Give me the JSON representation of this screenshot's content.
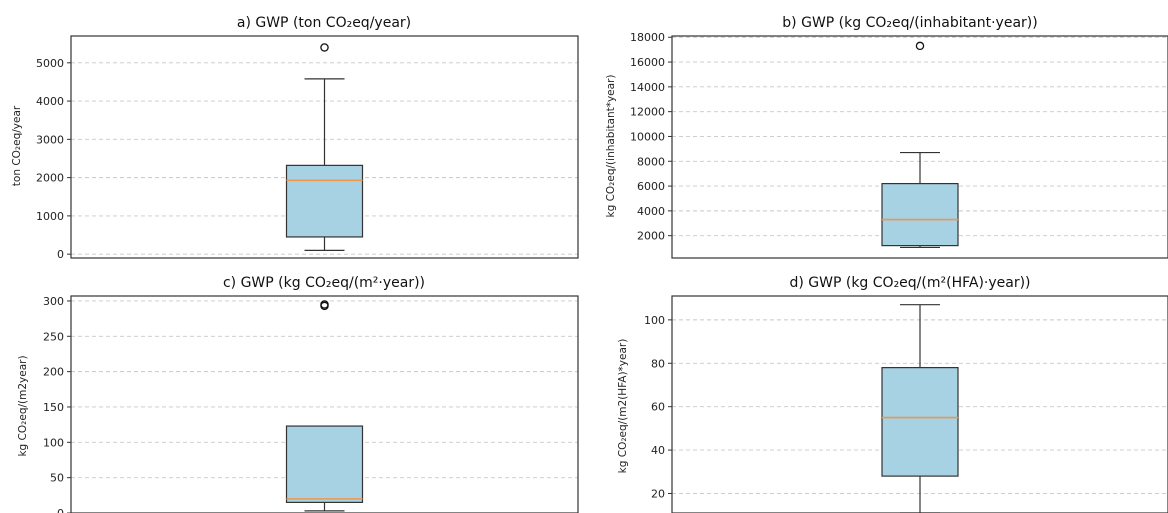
{
  "colors": {
    "box_fill": "#a6d2e4",
    "median": "#f0954d",
    "grid": "#c8c8c8",
    "frame": "#333333"
  },
  "chart_data": [
    {
      "type": "box",
      "title": "a) GWP (ton CO₂eq/year)",
      "ylabel": "ton CO₂eq/year",
      "ylim": [
        -100,
        5700
      ],
      "yticks": [
        0,
        1000,
        2000,
        3000,
        4000,
        5000
      ],
      "ytick_labels": [
        "0",
        "1000",
        "2000",
        "3000",
        "4000",
        "5000"
      ],
      "grid": "horizontal-dashed",
      "box": {
        "whisker_low": 100,
        "q1": 450,
        "median": 1930,
        "q3": 2320,
        "whisker_high": 4580,
        "outliers": [
          5400
        ]
      }
    },
    {
      "type": "box",
      "title": "b) GWP (kg CO₂eq/(inhabitant·year))",
      "ylabel": "kg CO₂eq/(inhabitant*year)",
      "ylim": [
        200,
        18100
      ],
      "yticks": [
        2000,
        4000,
        6000,
        8000,
        10000,
        12000,
        14000,
        16000,
        18000
      ],
      "ytick_labels": [
        "2000",
        "4000",
        "6000",
        "8000",
        "10000",
        "12000",
        "14000",
        "16000",
        "18000"
      ],
      "grid": "horizontal-dashed",
      "box": {
        "whisker_low": 1050,
        "q1": 1200,
        "median": 3300,
        "q3": 6200,
        "whisker_high": 8700,
        "outliers": [
          17300
        ]
      }
    },
    {
      "type": "box",
      "title": "c) GWP (kg CO₂eq/(m²·year))",
      "ylabel": "kg CO₂eq/(m2year)",
      "ylim": [
        0,
        307
      ],
      "yticks": [
        0,
        50,
        100,
        150,
        200,
        250,
        300
      ],
      "ytick_labels": [
        "0",
        "50",
        "100",
        "150",
        "200",
        "250",
        "300"
      ],
      "grid": "horizontal-dashed",
      "box": {
        "whisker_low": 3,
        "q1": 15,
        "median": 20,
        "q3": 123,
        "whisker_high": 123,
        "outliers": [
          293,
          295
        ]
      }
    },
    {
      "type": "box",
      "title": "d) GWP (kg CO₂eq/(m²(HFA)·year))",
      "ylabel": "kg CO₂eq/(m2(HFA)*year)",
      "ylim": [
        11,
        111
      ],
      "yticks": [
        20,
        40,
        60,
        80,
        100
      ],
      "ytick_labels": [
        "20",
        "40",
        "60",
        "80",
        "100"
      ],
      "grid": "horizontal-dashed",
      "box": {
        "whisker_low": 11,
        "q1": 28,
        "median": 55,
        "q3": 78,
        "whisker_high": 107,
        "outliers": []
      }
    }
  ]
}
